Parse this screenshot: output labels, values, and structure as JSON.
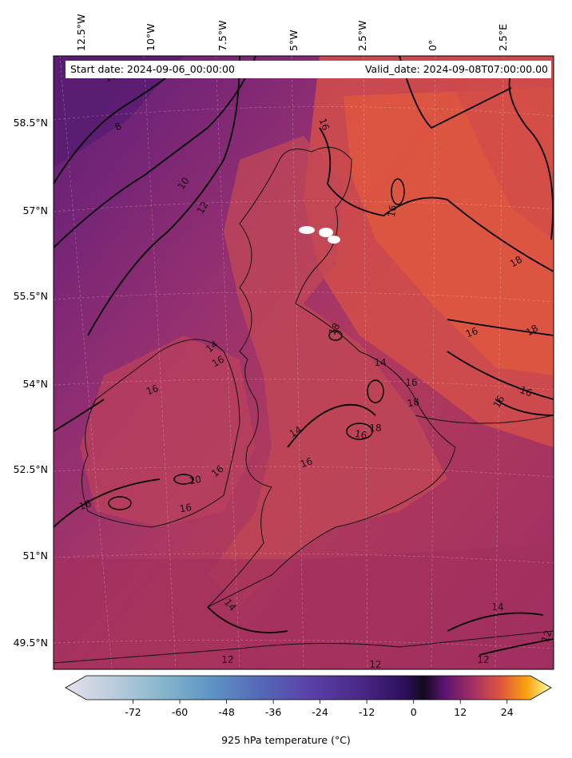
{
  "header": {
    "start_date": "Start date: 2024-09-06_00:00:00",
    "valid_date": "Valid_date: 2024-09-08T07:00:00.00"
  },
  "axes": {
    "longitude_labels": [
      "12.5°W",
      "10°W",
      "7.5°W",
      "5°W",
      "2.5°W",
      "0°",
      "2.5°E"
    ],
    "latitude_labels": [
      "58.5°N",
      "57°N",
      "55.5°N",
      "54°N",
      "52.5°N",
      "51°N",
      "49.5°N"
    ]
  },
  "contour_labels": [
    "8",
    "10",
    "12",
    "16",
    "16",
    "18",
    "16",
    "18",
    "18",
    "16",
    "16",
    "16",
    "14",
    "16",
    "18",
    "16",
    "14",
    "16",
    "16",
    "16",
    "10",
    "16",
    "14",
    "16",
    "14",
    "12",
    "12",
    "12",
    "12",
    "16",
    "14",
    "18"
  ],
  "colorbar": {
    "title": "925 hPa temperature (°C)",
    "min": -84,
    "max": 30,
    "ticks": [
      "-72",
      "-60",
      "-48",
      "-36",
      "-24",
      "-12",
      "0",
      "12",
      "24"
    ],
    "tick_values": [
      -72,
      -60,
      -48,
      -36,
      -24,
      -12,
      0,
      12,
      24
    ],
    "extend": "both"
  },
  "colors": {
    "cold_sea": "#7b2b78",
    "mid": "#a93362",
    "warm": "#cc4750",
    "hot": "#e0573f"
  }
}
